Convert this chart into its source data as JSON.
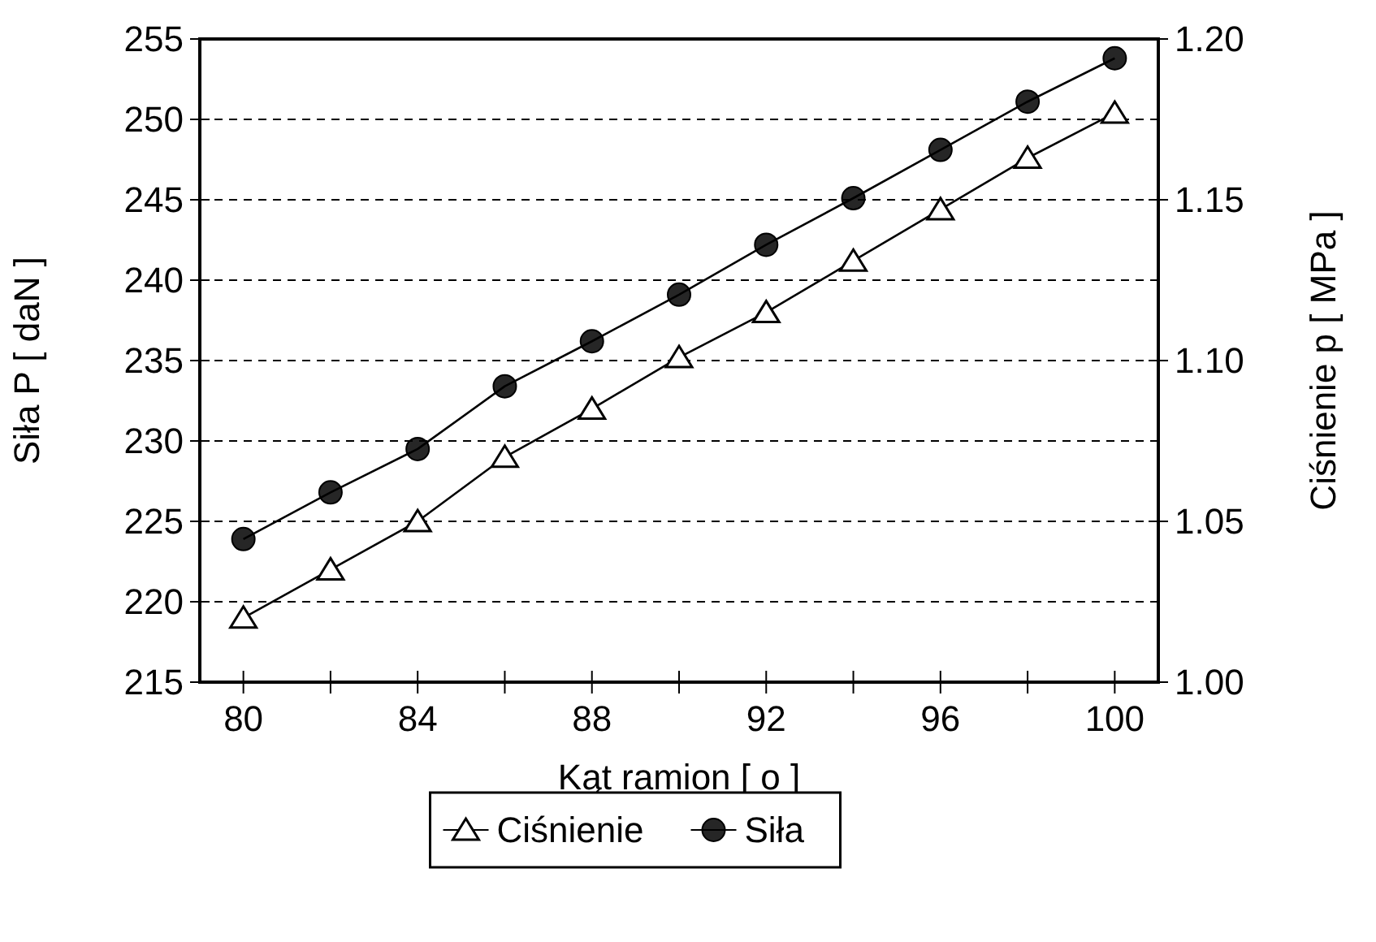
{
  "chart_data": {
    "type": "line",
    "xlabel": "Kąt ramion [ o ]",
    "ylabel": "Siła P [ daN ]",
    "y2label": "Ciśnienie p [ MPa ]",
    "x": [
      80,
      82,
      84,
      86,
      88,
      90,
      92,
      94,
      96,
      98,
      100
    ],
    "series": [
      {
        "name": "Ciśnienie",
        "color": "#000000",
        "axis": "y2",
        "marker": "triangle",
        "values": [
          1.02,
          1.035,
          1.05,
          1.07,
          1.085,
          1.101,
          1.115,
          1.131,
          1.147,
          1.163,
          1.177
        ]
      },
      {
        "name": "Siła",
        "color": "#000000",
        "axis": "y",
        "marker": "circle",
        "values": [
          223.9,
          226.8,
          229.5,
          233.4,
          236.2,
          239.1,
          242.2,
          245.1,
          248.1,
          251.1,
          253.8
        ]
      }
    ],
    "xlim": [
      79,
      101
    ],
    "xticks": [
      80,
      {
        "value": 82,
        "label": null
      },
      84,
      {
        "value": 86,
        "label": null
      },
      88,
      {
        "value": 90,
        "label": null
      },
      92,
      {
        "value": 94,
        "label": null
      },
      96,
      {
        "value": 98,
        "label": null
      },
      100
    ],
    "ylim": [
      215,
      255
    ],
    "yticks": [
      215,
      220,
      225,
      230,
      235,
      240,
      245,
      250,
      255
    ],
    "y2lim": [
      1.0,
      1.2
    ],
    "y2ticks": [
      {
        "value": 1.0,
        "label": "1.00"
      },
      {
        "value": 1.05,
        "label": "1.05"
      },
      {
        "value": 1.1,
        "label": "1.10"
      },
      {
        "value": 1.15,
        "label": "1.15"
      },
      {
        "value": 1.2,
        "label": "1.20"
      }
    ],
    "grid": "y",
    "legend": "bottom",
    "line_style": "solid"
  }
}
